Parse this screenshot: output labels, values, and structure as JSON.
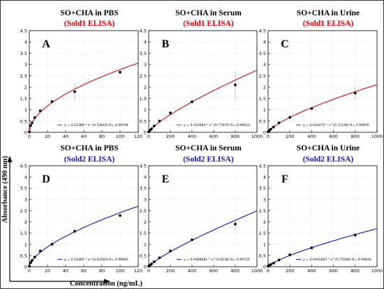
{
  "figure": {
    "ylabel": "Absorbance  (490 nm)",
    "xlabel": "Concentration  (ng/mL)"
  },
  "colors": {
    "red": "#e41a1a",
    "blue": "#1d22c9",
    "black": "#000000",
    "label_red": "#e60000",
    "label_blue": "#1616c8"
  },
  "chart_data": [
    {
      "type": "scatter",
      "panel": "A",
      "title": "SO+CHA in PBS",
      "subtitle": "(Sold1 ELISA)",
      "subtitle_color": "#e60000",
      "curve_color": "#e41a1a",
      "xlim": [
        0,
        120
      ],
      "ylim": [
        0,
        4.5
      ],
      "xticks": [
        "0",
        "20",
        "40",
        "60",
        "80",
        "100",
        "120"
      ],
      "yticks": [
        "0",
        "0.5",
        "1",
        "1.5",
        "2",
        "2.5",
        "3",
        "3.5",
        "4",
        "4.5"
      ],
      "fit": {
        "a": 0.23189,
        "b": 0.53916
      },
      "equation": "y = 0.23189 * x^(0.53916)   R= 0.99794",
      "legend_position": "bottom-right",
      "series": [
        {
          "x": [
            0,
            1.5,
            3,
            6,
            12,
            25,
            50,
            100
          ],
          "y": [
            0.02,
            0.3,
            0.42,
            0.65,
            0.95,
            1.36,
            1.8,
            2.66
          ],
          "err": [
            0.01,
            0.02,
            0.02,
            0.03,
            0.05,
            0.08,
            0.4,
            0.06
          ]
        }
      ]
    },
    {
      "type": "scatter",
      "panel": "B",
      "title": "SO+CHA in Serum",
      "subtitle": "(Sold1 ELISA)",
      "subtitle_color": "#e60000",
      "curve_color": "#e41a1a",
      "xlim": [
        0,
        1000
      ],
      "ylim": [
        0,
        4.5
      ],
      "xticks": [
        "0",
        "200",
        "400",
        "600",
        "800",
        "1000"
      ],
      "yticks": [
        "0",
        "0.5",
        "1",
        "1.5",
        "2",
        "2.5",
        "3",
        "3.5",
        "4",
        "4.5"
      ],
      "fit": {
        "a": 0.012684,
        "b": 0.77879
      },
      "equation": "y = 0.012684 * x^(0.77879)   R= 0.99621",
      "legend_position": "bottom-right",
      "series": [
        {
          "x": [
            0,
            12,
            25,
            50,
            100,
            200,
            400,
            800
          ],
          "y": [
            0.02,
            0.09,
            0.15,
            0.28,
            0.5,
            0.86,
            1.35,
            2.1
          ],
          "err": [
            0.01,
            0.01,
            0.02,
            0.03,
            0.04,
            0.05,
            0.06,
            0.6
          ]
        }
      ]
    },
    {
      "type": "scatter",
      "panel": "C",
      "title": "SO+CHA in Urine",
      "subtitle": "(Sold1 ELISA)",
      "subtitle_color": "#e60000",
      "curve_color": "#e41a1a",
      "xlim": [
        0,
        1000
      ],
      "ylim": [
        0,
        4.5
      ],
      "xticks": [
        "0",
        "200",
        "400",
        "600",
        "800",
        "1000"
      ],
      "yticks": [
        "0",
        "0.5",
        "1",
        "1.5",
        "2",
        "2.5",
        "3",
        "3.5",
        "4",
        "4.5"
      ],
      "fit": {
        "a": 0.014475,
        "b": 0.72148
      },
      "equation": "y = 0.014475 * x^(0.72148)   R= 0.99876",
      "legend_position": "bottom-right",
      "series": [
        {
          "x": [
            0,
            12,
            25,
            50,
            100,
            200,
            400,
            800
          ],
          "y": [
            0.02,
            0.08,
            0.14,
            0.23,
            0.42,
            0.66,
            1.05,
            1.74
          ],
          "err": [
            0.01,
            0.01,
            0.01,
            0.02,
            0.03,
            0.05,
            0.05,
            0.3
          ]
        }
      ]
    },
    {
      "type": "scatter",
      "panel": "D",
      "title": "SO+CHA in PBS",
      "subtitle": "(Sold2 ELISA)",
      "subtitle_color": "#1616c8",
      "curve_color": "#1d22c9",
      "xlim": [
        0,
        120
      ],
      "ylim": [
        0,
        4.5
      ],
      "xticks": [
        "0",
        "20",
        "40",
        "60",
        "80",
        "100",
        "120"
      ],
      "yticks": [
        "0",
        "0.5",
        "1",
        "1.5",
        "2",
        "2.5",
        "3",
        "3.5",
        "4",
        "4.5"
      ],
      "fit": {
        "a": 0.13485,
        "b": 0.62583
      },
      "equation": "y = 0.13485 * x^(0.62583)   R= 0.99865",
      "legend_position": "bottom-right",
      "series": [
        {
          "x": [
            0,
            1.5,
            3,
            6,
            12,
            25,
            50,
            100
          ],
          "y": [
            0.02,
            0.18,
            0.28,
            0.43,
            0.7,
            1.0,
            1.58,
            2.28
          ],
          "err": [
            0.01,
            0.01,
            0.02,
            0.03,
            0.04,
            0.08,
            0.2,
            0.05
          ]
        }
      ]
    },
    {
      "type": "scatter",
      "panel": "E",
      "title": "SO+CHA in Serum",
      "subtitle": "(Sold2 ELISA)",
      "subtitle_color": "#1616c8",
      "curve_color": "#1d22c9",
      "xlim": [
        0,
        1000
      ],
      "ylim": [
        0,
        4.5
      ],
      "xticks": [
        "0",
        "200",
        "400",
        "600",
        "800",
        "1000"
      ],
      "yticks": [
        "0",
        "0.5",
        "1",
        "1.5",
        "2",
        "2.5",
        "3",
        "3.5",
        "4",
        "4.5"
      ],
      "fit": {
        "a": 0.0088681,
        "b": 0.8158
      },
      "equation": "y = 0.0088681 * x^(0.8158)   R= 0.99725",
      "legend_position": "bottom-right",
      "series": [
        {
          "x": [
            0,
            12,
            25,
            50,
            100,
            200,
            400,
            800
          ],
          "y": [
            0.02,
            0.07,
            0.12,
            0.22,
            0.4,
            0.7,
            1.2,
            1.9
          ],
          "err": [
            0.01,
            0.01,
            0.01,
            0.02,
            0.03,
            0.05,
            0.06,
            0.25
          ]
        }
      ]
    },
    {
      "type": "scatter",
      "panel": "F",
      "title": "SO+CHA in Urine",
      "subtitle": "(Sold2 ELISA)",
      "subtitle_color": "#1616c8",
      "curve_color": "#1d22c9",
      "xlim": [
        0,
        1000
      ],
      "ylim": [
        0,
        4.5
      ],
      "xticks": [
        "0",
        "200",
        "400",
        "600",
        "800",
        "1000"
      ],
      "yticks": [
        "0",
        "0.5",
        "1",
        "1.5",
        "2",
        "2.5",
        "3",
        "3.5",
        "4",
        "4.5"
      ],
      "fit": {
        "a": 0.0091847,
        "b": 0.75568
      },
      "equation": "y = 0.0091847 * x^(0.75568)   R= 0.99818",
      "legend_position": "bottom-right",
      "series": [
        {
          "x": [
            0,
            12,
            25,
            50,
            100,
            200,
            400,
            800
          ],
          "y": [
            0.02,
            0.06,
            0.1,
            0.16,
            0.3,
            0.53,
            0.84,
            1.41
          ],
          "err": [
            0.01,
            0.01,
            0.01,
            0.02,
            0.02,
            0.03,
            0.04,
            0.06
          ]
        }
      ]
    }
  ]
}
